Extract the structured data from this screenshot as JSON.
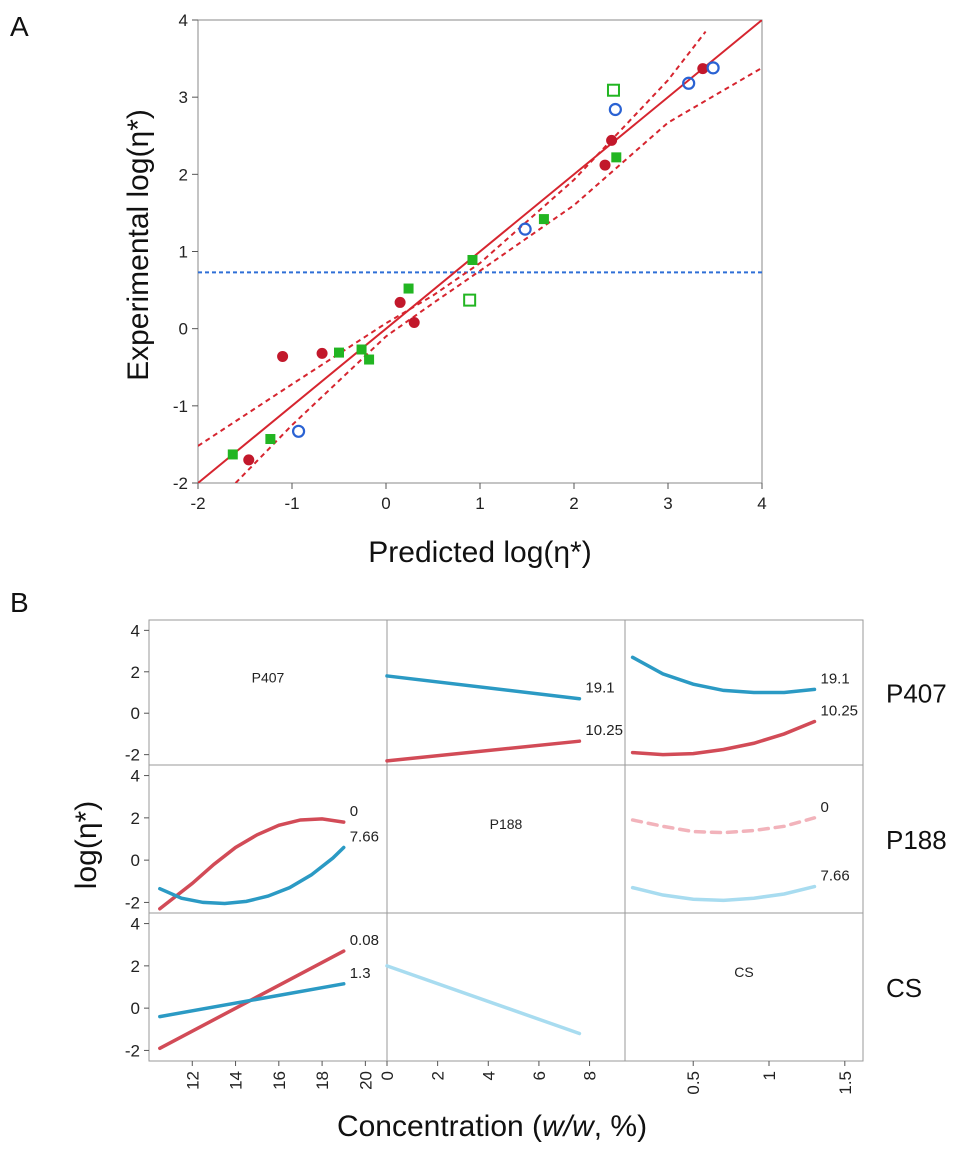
{
  "chart_data": [
    {
      "panel": "A",
      "type": "scatter",
      "xlabel": "Predicted log(η*)",
      "ylabel": "Experimental log(η*)",
      "xlim": [
        -2,
        4
      ],
      "ylim": [
        -2,
        4
      ],
      "x_ticks": [
        "-2",
        "-1",
        "0",
        "1",
        "2",
        "3",
        "4"
      ],
      "y_ticks": [
        "4",
        "3",
        "2",
        "1",
        "0",
        "-1",
        "-2"
      ],
      "grid": false,
      "colors": {
        "fit_line": "#d6252f",
        "mean_line": "#2f6fd6",
        "red_points": "#c2182b",
        "green_points": "#22b522",
        "blue_points": "#2a62d3"
      },
      "reference_line_y": 0.73,
      "fit_line": [
        [
          -2,
          -2
        ],
        [
          4,
          4
        ]
      ],
      "confidence_upper": [
        [
          -2,
          -1.52
        ],
        [
          -1,
          -0.72
        ],
        [
          0,
          0.07
        ],
        [
          0.5,
          0.43
        ],
        [
          1,
          0.85
        ],
        [
          2,
          1.93
        ],
        [
          3,
          3.22
        ],
        [
          3.4,
          3.85
        ]
      ],
      "confidence_lower": [
        [
          -1.6,
          -2
        ],
        [
          -1,
          -1.25
        ],
        [
          0,
          -0.1
        ],
        [
          0.5,
          0.33
        ],
        [
          1,
          0.75
        ],
        [
          2,
          1.6
        ],
        [
          3,
          2.67
        ],
        [
          4,
          3.38
        ]
      ],
      "series": [
        {
          "marker": "filled-circle",
          "color": "#c2182b",
          "points": [
            [
              -1.1,
              -0.36
            ],
            [
              -0.68,
              -0.32
            ],
            [
              0.15,
              0.34
            ],
            [
              0.3,
              0.08
            ],
            [
              -1.46,
              -1.7
            ],
            [
              2.33,
              2.12
            ],
            [
              2.4,
              2.44
            ],
            [
              3.37,
              3.37
            ]
          ]
        },
        {
          "marker": "filled-square",
          "color": "#22b522",
          "points": [
            [
              -1.63,
              -1.63
            ],
            [
              -1.23,
              -1.43
            ],
            [
              -0.5,
              -0.31
            ],
            [
              -0.26,
              -0.27
            ],
            [
              -0.18,
              -0.4
            ],
            [
              0.24,
              0.52
            ],
            [
              0.92,
              0.89
            ],
            [
              1.68,
              1.42
            ],
            [
              2.45,
              2.22
            ]
          ]
        },
        {
          "marker": "open-square",
          "color": "#22b522",
          "points": [
            [
              0.89,
              0.37
            ],
            [
              2.42,
              3.09
            ]
          ]
        },
        {
          "marker": "open-circle",
          "color": "#2a62d3",
          "points": [
            [
              -0.93,
              -1.33
            ],
            [
              1.48,
              1.29
            ],
            [
              2.44,
              2.84
            ],
            [
              3.22,
              3.18
            ],
            [
              3.48,
              3.38
            ]
          ]
        }
      ]
    },
    {
      "panel": "B",
      "type": "line",
      "ylabel": "log(η*)",
      "xlabel": "Concentration (w/w, %)",
      "ylim": [
        -2.5,
        4.5
      ],
      "y_ticks": [
        "4",
        "2",
        "0",
        "-2"
      ],
      "row_labels": [
        "P407",
        "P188",
        "CS"
      ],
      "diagonal_labels": [
        "P407",
        "P188",
        "CS"
      ],
      "columns": [
        {
          "name": "P407",
          "xlim": [
            10,
            21
          ],
          "x_ticks": [
            "12",
            "14",
            "16",
            "18",
            "20"
          ],
          "tick_values": [
            12,
            14,
            16,
            18,
            20
          ]
        },
        {
          "name": "P188",
          "xlim": [
            0,
            9.4
          ],
          "x_ticks": [
            "0",
            "2",
            "4",
            "6",
            "8"
          ],
          "tick_values": [
            0,
            2,
            4,
            6,
            8
          ]
        },
        {
          "name": "CS",
          "xlim": [
            0.05,
            1.62
          ],
          "x_ticks": [
            "0.5",
            "1",
            "1.5"
          ],
          "tick_values": [
            0.5,
            1,
            1.5
          ]
        }
      ],
      "cells": [
        {
          "row": 0,
          "col": 1,
          "curves": [
            {
              "color": "#2b9ac4",
              "label": "19.1",
              "x": [
                0,
                7.6
              ],
              "y": [
                1.8,
                0.7
              ]
            },
            {
              "color": "#d24b57",
              "label": "10.25",
              "x": [
                0,
                7.6
              ],
              "y": [
                -2.3,
                -1.35
              ]
            }
          ]
        },
        {
          "row": 0,
          "col": 2,
          "curves": [
            {
              "color": "#2b9ac4",
              "label": "19.1",
              "x": [
                0.1,
                0.3,
                0.5,
                0.7,
                0.9,
                1.1,
                1.3
              ],
              "y": [
                2.7,
                1.9,
                1.4,
                1.1,
                1.0,
                1.0,
                1.15
              ]
            },
            {
              "color": "#d24b57",
              "label": "10.25",
              "x": [
                0.1,
                0.3,
                0.5,
                0.7,
                0.9,
                1.1,
                1.3
              ],
              "y": [
                -1.9,
                -2.0,
                -1.95,
                -1.75,
                -1.45,
                -1.0,
                -0.4
              ]
            }
          ]
        },
        {
          "row": 1,
          "col": 0,
          "curves": [
            {
              "color": "#d24b57",
              "label": "0",
              "x": [
                10.5,
                12,
                13,
                14,
                15,
                16,
                17,
                18,
                19
              ],
              "y": [
                -2.3,
                -1.1,
                -0.2,
                0.6,
                1.2,
                1.65,
                1.9,
                1.95,
                1.8
              ]
            },
            {
              "color": "#2b9ac4",
              "label": "7.66",
              "x": [
                10.5,
                11.5,
                12.5,
                13.5,
                14.5,
                15.5,
                16.5,
                17.5,
                18.5,
                19
              ],
              "y": [
                -1.35,
                -1.8,
                -2.0,
                -2.05,
                -1.95,
                -1.7,
                -1.3,
                -0.7,
                0.1,
                0.6
              ]
            }
          ]
        },
        {
          "row": 1,
          "col": 2,
          "curves": [
            {
              "color": "#f2b3bb",
              "label": "0",
              "dashed": true,
              "x": [
                0.1,
                0.3,
                0.5,
                0.7,
                0.9,
                1.1,
                1.3
              ],
              "y": [
                1.9,
                1.6,
                1.35,
                1.3,
                1.4,
                1.6,
                2.0
              ]
            },
            {
              "color": "#a8dcf0",
              "label": "7.66",
              "x": [
                0.1,
                0.3,
                0.5,
                0.7,
                0.9,
                1.1,
                1.3
              ],
              "y": [
                -1.3,
                -1.65,
                -1.85,
                -1.9,
                -1.8,
                -1.6,
                -1.25
              ]
            }
          ]
        },
        {
          "row": 2,
          "col": 0,
          "curves": [
            {
              "color": "#d24b57",
              "label": "0.08",
              "x": [
                10.5,
                19
              ],
              "y": [
                -1.9,
                2.7
              ]
            },
            {
              "color": "#2b9ac4",
              "label": "1.3",
              "x": [
                10.5,
                19
              ],
              "y": [
                -0.4,
                1.15
              ]
            }
          ]
        },
        {
          "row": 2,
          "col": 1,
          "curves": [
            {
              "color": "#a8dcf0",
              "label": "",
              "x": [
                0,
                7.6
              ],
              "y": [
                2.0,
                -1.2
              ]
            }
          ]
        }
      ]
    }
  ],
  "panel_labels": {
    "a": "A",
    "b": "B"
  }
}
